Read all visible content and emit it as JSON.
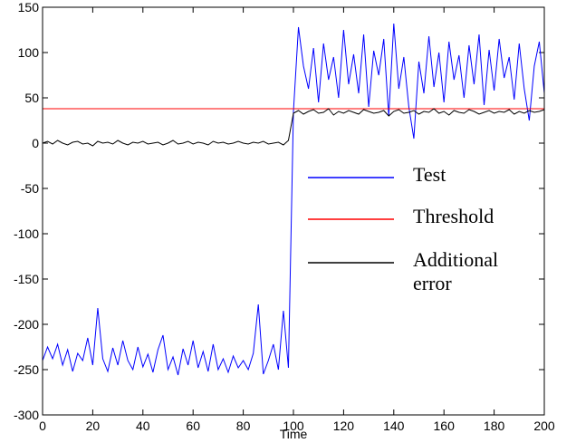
{
  "chart_data": {
    "type": "line",
    "xlabel": "Time",
    "x": [
      0,
      2,
      4,
      6,
      8,
      10,
      12,
      14,
      16,
      18,
      20,
      22,
      24,
      26,
      28,
      30,
      32,
      34,
      36,
      38,
      40,
      42,
      44,
      46,
      48,
      50,
      52,
      54,
      56,
      58,
      60,
      62,
      64,
      66,
      68,
      70,
      72,
      74,
      76,
      78,
      80,
      82,
      84,
      86,
      88,
      90,
      92,
      94,
      96,
      98,
      100,
      102,
      104,
      106,
      108,
      110,
      112,
      114,
      116,
      118,
      120,
      122,
      124,
      126,
      128,
      130,
      132,
      134,
      136,
      138,
      140,
      142,
      144,
      146,
      148,
      150,
      152,
      154,
      156,
      158,
      160,
      162,
      164,
      166,
      168,
      170,
      172,
      174,
      176,
      178,
      180,
      182,
      184,
      186,
      188,
      190,
      192,
      194,
      196,
      198,
      200
    ],
    "series": [
      {
        "name": "Test",
        "color": "#0000ff",
        "values": [
          -240,
          -225,
          -238,
          -222,
          -245,
          -228,
          -252,
          -232,
          -240,
          -215,
          -245,
          -182,
          -238,
          -252,
          -226,
          -245,
          -218,
          -240,
          -250,
          -225,
          -247,
          -233,
          -253,
          -228,
          -212,
          -250,
          -236,
          -256,
          -227,
          -245,
          -218,
          -248,
          -230,
          -252,
          -222,
          -250,
          -238,
          -253,
          -235,
          -248,
          -240,
          -250,
          -232,
          -178,
          -255,
          -240,
          -222,
          -250,
          -185,
          -248,
          35,
          128,
          85,
          60,
          105,
          45,
          110,
          70,
          95,
          50,
          125,
          65,
          98,
          55,
          120,
          40,
          102,
          75,
          115,
          30,
          132,
          60,
          95,
          40,
          5,
          90,
          55,
          118,
          62,
          100,
          45,
          112,
          70,
          97,
          50,
          108,
          65,
          120,
          42,
          103,
          58,
          115,
          72,
          95,
          48,
          110,
          60,
          25,
          85,
          112,
          55
        ]
      },
      {
        "name": "Threshold",
        "color": "#ff0000",
        "x": [
          0,
          200
        ],
        "values": [
          38,
          38
        ]
      },
      {
        "name": "Additional error",
        "color": "#000000",
        "values": [
          0,
          2,
          -1,
          3,
          0,
          -2,
          1,
          2,
          -1,
          0,
          -3,
          2,
          0,
          1,
          -1,
          3,
          0,
          -2,
          1,
          0,
          2,
          -1,
          0,
          1,
          -2,
          0,
          3,
          -1,
          0,
          2,
          -1,
          1,
          0,
          -2,
          2,
          0,
          1,
          -1,
          0,
          2,
          0,
          -1,
          1,
          0,
          2,
          -1,
          0,
          1,
          -2,
          3,
          33,
          36,
          32,
          35,
          37,
          33,
          34,
          38,
          31,
          35,
          33,
          36,
          34,
          32,
          37,
          35,
          33,
          34,
          36,
          30,
          35,
          37,
          33,
          34,
          36,
          32,
          35,
          34,
          38,
          33,
          35,
          31,
          36,
          34,
          33,
          37,
          35,
          32,
          34,
          36,
          33,
          35,
          34,
          37,
          32,
          35,
          33,
          36,
          34,
          35,
          37
        ]
      }
    ],
    "xlim": [
      0,
      200
    ],
    "xticks": [
      0,
      20,
      40,
      60,
      80,
      100,
      120,
      140,
      160,
      180,
      200
    ],
    "ylim": [
      -300,
      150
    ],
    "yticks": [
      -300,
      -250,
      -200,
      -150,
      -100,
      -50,
      0,
      50,
      100,
      150
    ]
  }
}
